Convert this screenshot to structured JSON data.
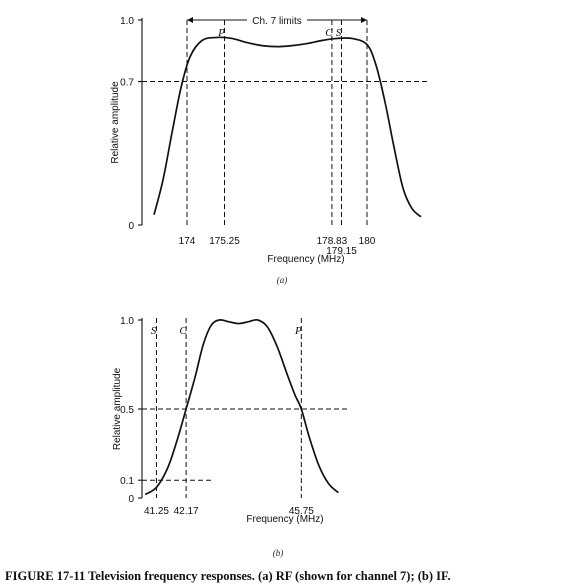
{
  "chart_data": [
    {
      "id": "a",
      "type": "line",
      "sublabel": "(a)",
      "xlabel": "Frequency (MHz)",
      "ylabel": "Relative amplitude",
      "xlim": [
        172.5,
        182.1
      ],
      "ylim": [
        0,
        1.0
      ],
      "x_ticks": [
        {
          "value": 174,
          "label": "174"
        },
        {
          "value": 175.25,
          "label": "175.25"
        },
        {
          "value": 178.83,
          "label": "178.83"
        },
        {
          "value": 179.15,
          "label": "179.15"
        },
        {
          "value": 180,
          "label": "180"
        }
      ],
      "y_ticks": [
        {
          "value": 1.0,
          "label": "1.0"
        },
        {
          "value": 0.7,
          "label": "0.7"
        },
        {
          "value": 0,
          "label": "0"
        }
      ],
      "vertical_markers": [
        {
          "x": 174,
          "letter": ""
        },
        {
          "x": 175.25,
          "letter": "P"
        },
        {
          "x": 178.83,
          "letter": "C"
        },
        {
          "x": 179.15,
          "letter": "S"
        },
        {
          "x": 180,
          "letter": ""
        }
      ],
      "horizontal_markers": [
        0.7
      ],
      "range_annotation": {
        "label": "Ch. 7 limits",
        "from": 174,
        "to": 180
      },
      "curve": {
        "x": [
          172.9,
          173.2,
          173.5,
          173.8,
          174.1,
          174.5,
          175.0,
          175.5,
          176.0,
          176.5,
          177.0,
          177.5,
          178.0,
          178.5,
          179.0,
          179.5,
          180.0,
          180.3,
          180.6,
          180.9,
          181.2,
          181.5,
          181.8
        ],
        "y": [
          0.05,
          0.22,
          0.45,
          0.67,
          0.82,
          0.9,
          0.915,
          0.91,
          0.89,
          0.875,
          0.87,
          0.875,
          0.885,
          0.9,
          0.91,
          0.91,
          0.88,
          0.78,
          0.6,
          0.38,
          0.18,
          0.08,
          0.04
        ]
      }
    },
    {
      "id": "b",
      "type": "line",
      "sublabel": "(b)",
      "xlabel": "Frequency (MHz)",
      "ylabel": "Relative amplitude",
      "xlim": [
        40.8,
        47.2
      ],
      "ylim": [
        0,
        1.0
      ],
      "x_ticks": [
        {
          "value": 41.25,
          "label": "41.25"
        },
        {
          "value": 42.17,
          "label": "42.17"
        },
        {
          "value": 45.75,
          "label": "45.75"
        }
      ],
      "y_ticks": [
        {
          "value": 1.0,
          "label": "1.0"
        },
        {
          "value": 0.5,
          "label": "0.5"
        },
        {
          "value": 0.1,
          "label": "0.1"
        },
        {
          "value": 0,
          "label": "0"
        }
      ],
      "vertical_markers": [
        {
          "x": 41.25,
          "letter": "S"
        },
        {
          "x": 42.17,
          "letter": "C"
        },
        {
          "x": 45.75,
          "letter": "P"
        }
      ],
      "horizontal_markers": [
        {
          "y": 0.5,
          "x_from": 40.8,
          "x_to": 47.2
        },
        {
          "y": 0.1,
          "x_from": 40.8,
          "x_to": 43.0
        }
      ],
      "curve": {
        "x": [
          40.9,
          41.25,
          41.6,
          41.9,
          42.17,
          42.45,
          42.7,
          42.95,
          43.2,
          43.5,
          43.8,
          44.1,
          44.4,
          44.7,
          45.0,
          45.3,
          45.55,
          45.75,
          46.0,
          46.3,
          46.6,
          46.9
        ],
        "y": [
          0.02,
          0.06,
          0.17,
          0.33,
          0.5,
          0.68,
          0.86,
          0.97,
          1.0,
          0.99,
          0.98,
          0.99,
          1.0,
          0.96,
          0.85,
          0.7,
          0.58,
          0.5,
          0.34,
          0.18,
          0.08,
          0.03
        ]
      }
    }
  ],
  "caption": "FIGURE 17-11   Television frequency responses. (a) RF (shown for channel 7); (b) IF."
}
